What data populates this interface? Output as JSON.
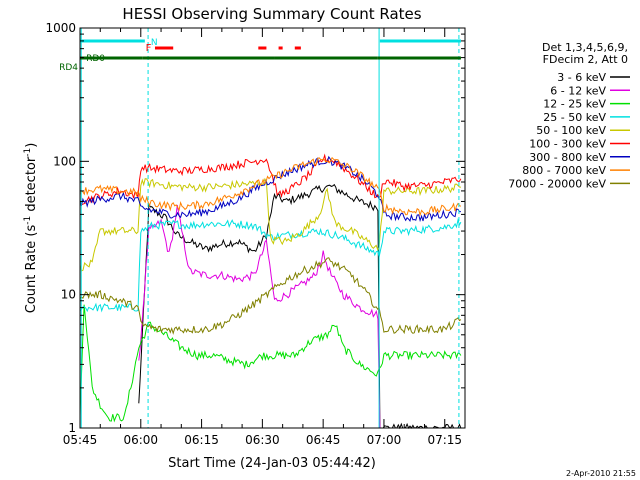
{
  "chart_data": {
    "type": "line",
    "title": "HESSI Observing Summary Count Rates",
    "xlabel": "Start Time (24-Jan-03 05:44:42)",
    "ylabel_main": "Count Rate (s",
    "ylabel_sup1": "-1",
    "ylabel_mid": " detector",
    "ylabel_sup2": "-1",
    "ylabel_end": ")",
    "yscale": "log",
    "xlim_minutes": [
      345,
      440
    ],
    "ylim": [
      1,
      1000
    ],
    "x_ticks": [
      "05:45",
      "06:00",
      "06:15",
      "06:30",
      "06:45",
      "07:00",
      "07:15"
    ],
    "x_tick_minutes": [
      345,
      360,
      375,
      390,
      405,
      420,
      435
    ],
    "y_ticks": [
      "1",
      "10",
      "100",
      "1000"
    ],
    "y_tick_values": [
      1,
      10,
      100,
      1000
    ],
    "legend_title": [
      "Det 1,3,4,5,6,9,",
      "FDecim 2, Att 0"
    ],
    "legend_position": "right",
    "footer_date": "2-Apr-2010 21:55",
    "colors": {
      "axis": "#000000",
      "attenuator": "#00e0e0",
      "flare": "#ff0000",
      "night": "#006400",
      "saa": "#00e0e0"
    },
    "flag_labels": {
      "night": "N",
      "flare": "F",
      "rd0": "RD0",
      "rd4": "RD4"
    },
    "flags": {
      "attenuator": [
        [
          345,
          361
        ],
        [
          419,
          439
        ]
      ],
      "flare": [
        [
          363.5,
          368
        ],
        [
          389,
          391
        ],
        [
          394,
          395
        ],
        [
          398,
          399.5
        ]
      ],
      "night": [
        [
          345,
          360.5
        ],
        [
          360.5,
          393
        ],
        [
          393,
          418.5
        ],
        [
          418.5,
          439
        ]
      ]
    },
    "saa_lines_minutes": [
      345.3,
      361.8,
      418.8,
      438.5
    ],
    "gap_minutes": [
      [
        345.3,
        359.3
      ],
      [
        418.8,
        438.5
      ]
    ],
    "series": [
      {
        "name": "3 - 6 keV",
        "color": "#000000",
        "x": [
          359.5,
          362,
          366,
          369,
          372,
          376,
          380,
          384,
          388,
          391,
          393,
          396,
          400,
          404,
          407,
          410,
          414,
          418.5,
          419,
          421,
          425,
          430,
          435,
          439
        ],
        "values": [
          1.5,
          45,
          38,
          28,
          25,
          22,
          24,
          25,
          21,
          28,
          55,
          50,
          55,
          62,
          65,
          58,
          50,
          45,
          1,
          1,
          1,
          1,
          1,
          1
        ]
      },
      {
        "name": "6 - 12 keV",
        "color": "#e000e0",
        "x": [
          359.5,
          362,
          365,
          367,
          369,
          372,
          376,
          380,
          384,
          388,
          391,
          393,
          396,
          400,
          403,
          405,
          407,
          410,
          414,
          418.5,
          419
        ],
        "values": [
          3,
          30,
          35,
          20,
          45,
          15,
          14,
          14,
          13,
          14,
          25,
          9,
          10,
          12,
          14,
          20,
          14,
          10,
          8,
          7,
          1
        ]
      },
      {
        "name": "12 - 25 keV",
        "color": "#00e000",
        "x": [
          345,
          346,
          348,
          350,
          352,
          356,
          359.5,
          362,
          366,
          370,
          374,
          378,
          382,
          386,
          390,
          394,
          398,
          402,
          406,
          408,
          410,
          414,
          418.5,
          420,
          425,
          430,
          435,
          439
        ],
        "values": [
          1.2,
          9,
          2,
          1.5,
          1.2,
          1.2,
          4,
          6,
          5,
          4,
          3.5,
          3.5,
          3.2,
          3.0,
          3.5,
          3.5,
          3.5,
          4.5,
          5,
          6,
          4,
          3.0,
          2.5,
          3.5,
          3.5,
          3.5,
          3.5,
          3.5
        ]
      },
      {
        "name": "25 - 50 keV",
        "color": "#00e0e0",
        "x": [
          345,
          350,
          355,
          359.3,
          360,
          363,
          368,
          372,
          376,
          380,
          384,
          388,
          392,
          396,
          400,
          404,
          408,
          412,
          416,
          418.8,
          420,
          425,
          430,
          435,
          439
        ],
        "values": [
          8,
          8,
          8,
          8,
          30,
          33,
          34,
          33,
          34,
          34,
          34,
          33,
          27,
          28,
          29,
          30,
          28,
          25,
          22,
          20,
          30,
          30,
          31,
          32,
          35
        ]
      },
      {
        "name": "50 - 100 keV",
        "color": "#c8c800",
        "x": [
          345,
          348,
          350,
          355,
          359.3,
          360,
          364,
          368,
          372,
          376,
          380,
          384,
          388,
          391,
          392,
          396,
          400,
          404,
          406,
          408,
          412,
          416,
          418.8,
          420,
          425,
          430,
          435,
          439
        ],
        "values": [
          16,
          17,
          30,
          30,
          30,
          70,
          68,
          65,
          64,
          64,
          65,
          67,
          68,
          70,
          26,
          25,
          30,
          40,
          60,
          34,
          30,
          25,
          22,
          60,
          60,
          60,
          62,
          64
        ]
      },
      {
        "name": "100 - 300 keV",
        "color": "#ff0000",
        "x": [
          345,
          350,
          355,
          359.3,
          360,
          364,
          368,
          372,
          376,
          380,
          384,
          388,
          391,
          394,
          398,
          402,
          405,
          408,
          412,
          416,
          418.8,
          420,
          425,
          430,
          435,
          439
        ],
        "values": [
          50,
          55,
          60,
          55,
          90,
          88,
          85,
          85,
          88,
          90,
          95,
          100,
          105,
          55,
          65,
          82,
          105,
          100,
          80,
          63,
          52,
          72,
          65,
          66,
          70,
          74
        ]
      },
      {
        "name": "300 - 800 keV",
        "color": "#0000c0",
        "x": [
          345,
          350,
          355,
          359.3,
          360,
          364,
          368,
          372,
          376,
          380,
          384,
          388,
          392,
          396,
          400,
          404,
          406,
          408,
          412,
          416,
          418.8,
          420,
          425,
          430,
          435,
          439
        ],
        "values": [
          48,
          52,
          55,
          50,
          45,
          42,
          40,
          40,
          42,
          46,
          52,
          62,
          72,
          82,
          92,
          100,
          102,
          98,
          85,
          68,
          55,
          40,
          38,
          38,
          40,
          42
        ]
      },
      {
        "name": "800 - 7000 keV",
        "color": "#ff8000",
        "x": [
          345,
          350,
          355,
          359.3,
          360,
          364,
          368,
          372,
          376,
          380,
          384,
          388,
          392,
          396,
          400,
          404,
          406,
          408,
          412,
          416,
          418.8,
          420,
          425,
          430,
          435,
          439
        ],
        "values": [
          60,
          62,
          60,
          58,
          52,
          48,
          46,
          46,
          48,
          52,
          58,
          66,
          74,
          84,
          94,
          102,
          104,
          100,
          88,
          72,
          60,
          45,
          42,
          42,
          44,
          46
        ]
      },
      {
        "name": "7000 - 20000 keV",
        "color": "#808000",
        "x": [
          345,
          350,
          355,
          359.3,
          360,
          364,
          368,
          372,
          376,
          380,
          384,
          388,
          392,
          396,
          400,
          404,
          406,
          408,
          412,
          416,
          418.8,
          420,
          425,
          430,
          435,
          439
        ],
        "values": [
          10,
          10,
          9,
          8,
          6,
          5.5,
          5.5,
          5.5,
          5.5,
          6,
          7,
          8.5,
          10.5,
          13,
          15,
          17,
          18,
          17,
          14,
          10,
          7.5,
          5.5,
          5.5,
          5.5,
          5.5,
          6.5
        ]
      }
    ]
  }
}
